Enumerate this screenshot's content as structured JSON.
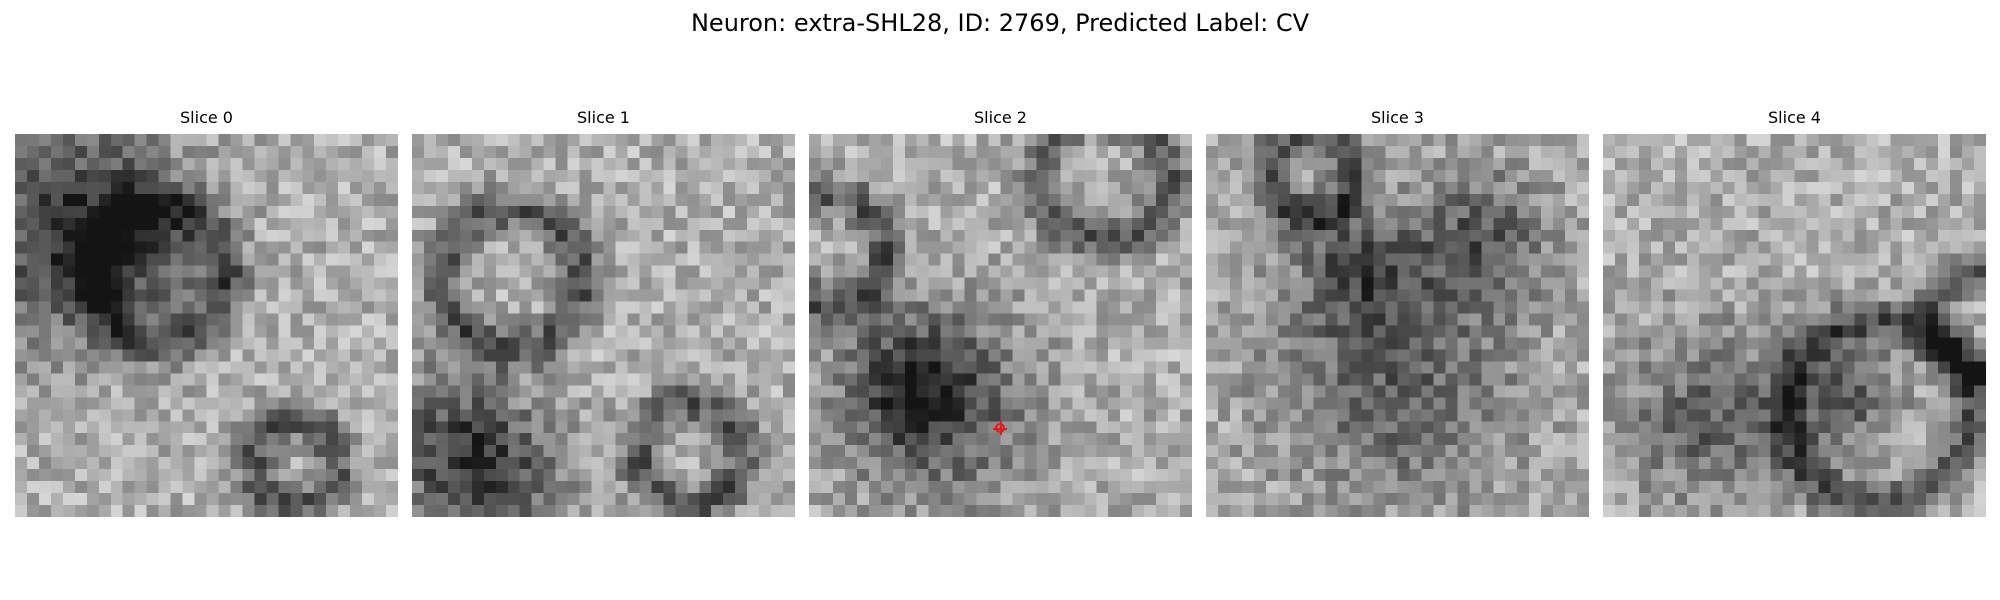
{
  "figure": {
    "title": "Neuron: extra-SHL28, ID: 2769, Predicted Label: CV",
    "panels": [
      {
        "title": "Slice 0",
        "seed": 11,
        "has_marker": false
      },
      {
        "title": "Slice 1",
        "seed": 23,
        "has_marker": false
      },
      {
        "title": "Slice 2",
        "seed": 37,
        "has_marker": true
      },
      {
        "title": "Slice 3",
        "seed": 53,
        "has_marker": false
      },
      {
        "title": "Slice 4",
        "seed": 71,
        "has_marker": false
      }
    ],
    "colormap": "gray",
    "marker_color": "#e41a1c"
  }
}
